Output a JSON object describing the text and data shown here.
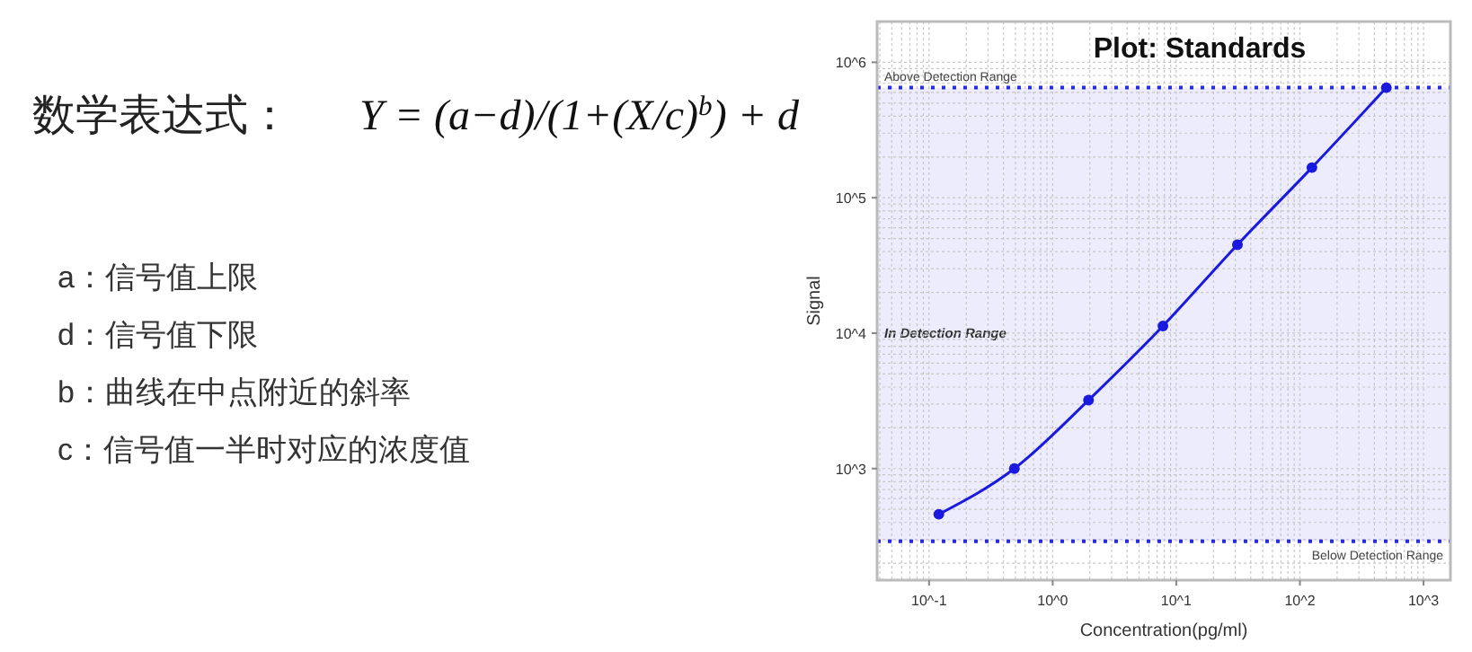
{
  "chart_data": [
    {
      "type": "other",
      "title": "数学表达式：",
      "annotations": [
        "Y = (a−d)/(1+(X/c)$^{b}$) + d",
        "a：信号值上限",
        "d：信号值下限",
        "b：曲线在中点附近的斜率",
        "c：信号值一半时对应的浓度值"
      ]
    },
    {
      "type": "line",
      "title": "Plot: Standards",
      "xlabel": "Concentration(pg/ml)",
      "ylabel": "Signal",
      "log": "xy",
      "grid": true,
      "marker": "circle",
      "line_style": "solid",
      "x": [
        0.12,
        0.49,
        1.95,
        7.8,
        31.25,
        125,
        500
      ],
      "series": [
        {
          "color": "#1a1adf",
          "values": [
            460,
            1000,
            3200,
            11300,
            45000,
            167000,
            650000
          ]
        }
      ],
      "xlim": [
        0.038,
        1650
      ],
      "ylim": [
        150,
        2000000
      ],
      "xticks": [
        {
          "value": 0.1,
          "label": "10^-1"
        },
        {
          "value": 1,
          "label": "10^0"
        },
        {
          "value": 10,
          "label": "10^1"
        },
        {
          "value": 100,
          "label": "10^2"
        },
        {
          "value": 1000,
          "label": "10^3"
        }
      ],
      "yticks": [
        {
          "value": 1000,
          "label": "10^3"
        },
        {
          "value": 10000,
          "label": "10^4"
        },
        {
          "value": 100000,
          "label": "10^5"
        },
        {
          "value": 1000000,
          "label": "10^6"
        }
      ],
      "bands": [
        {
          "axis": "y",
          "from": 290,
          "to": 650000,
          "label": "In Detection Range",
          "color": "#ececfd"
        }
      ],
      "ref_lines": [
        {
          "axis": "y",
          "value": 650000,
          "label": "Above Detection Range",
          "color": "#2a2ae0",
          "line_style": "dotted"
        },
        {
          "axis": "y",
          "value": 290,
          "label": "Below Detection Range",
          "color": "#2a2ae0",
          "line_style": "dotted"
        }
      ]
    }
  ]
}
